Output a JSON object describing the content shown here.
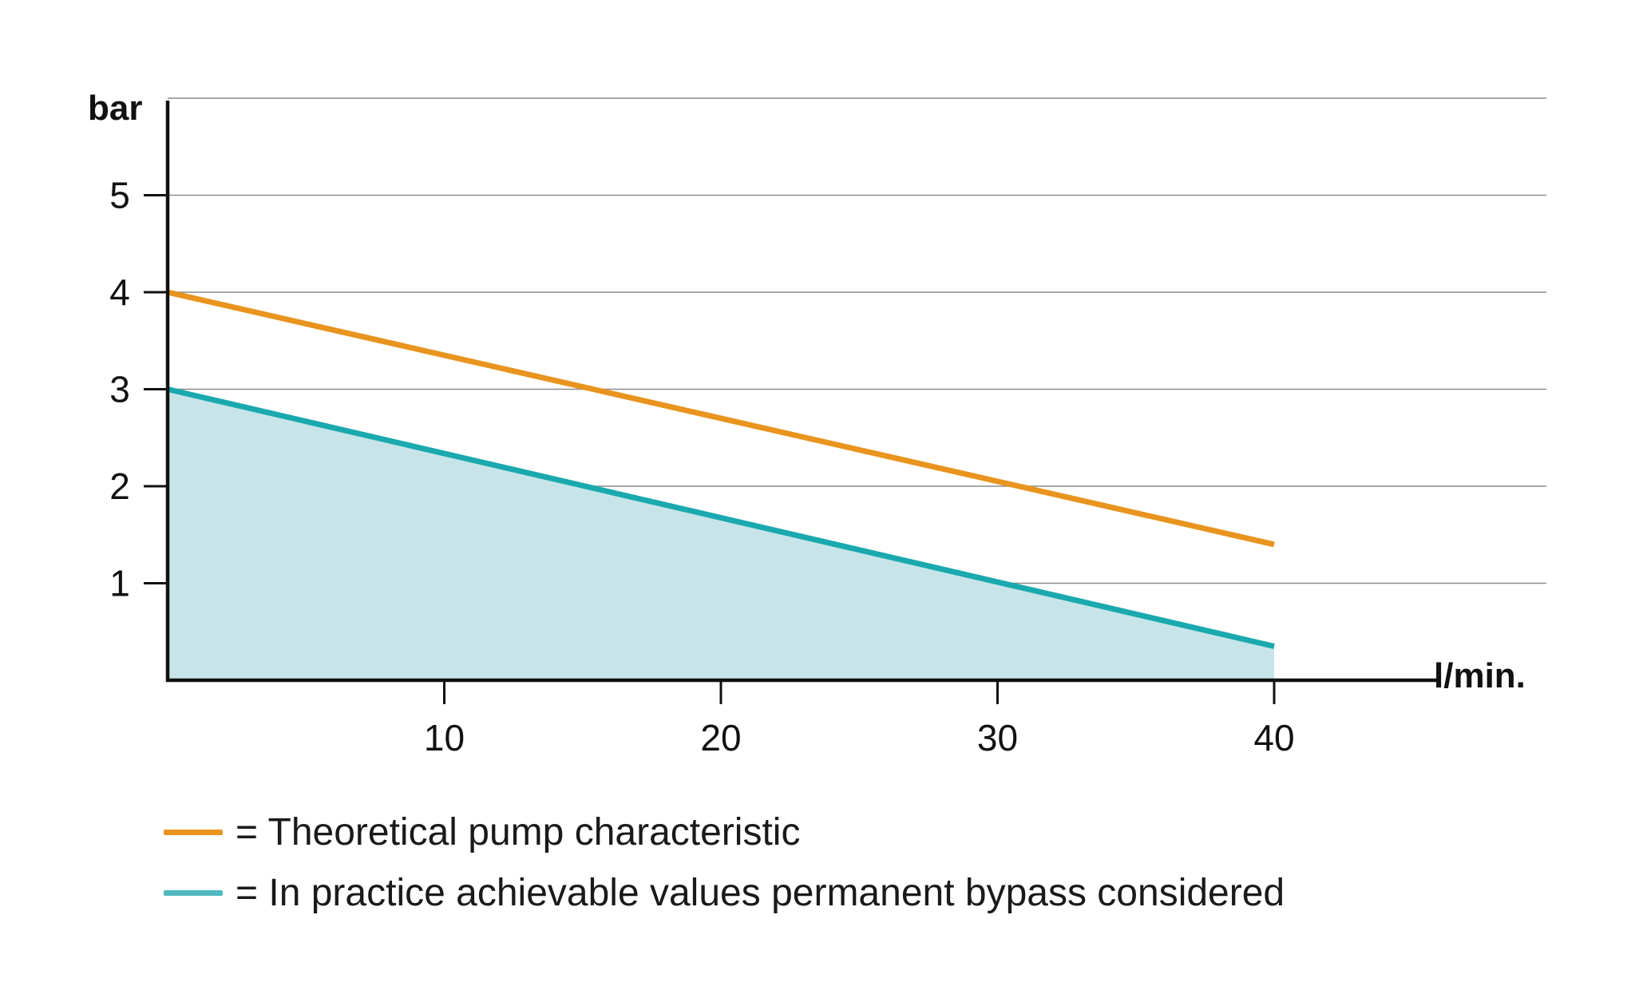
{
  "chart_data": {
    "type": "line",
    "ylabel": "bar",
    "xlabel": "l/min.",
    "x_ticks": [
      10,
      20,
      30,
      40
    ],
    "y_ticks": [
      1,
      2,
      3,
      4,
      5
    ],
    "xlim": [
      0,
      50
    ],
    "ylim": [
      0,
      6
    ],
    "grid": "horizontal",
    "series": [
      {
        "name": "Theoretical pump characteristic",
        "color": "#E8941E",
        "filled": false,
        "x": [
          0,
          40
        ],
        "y": [
          4.0,
          1.4
        ]
      },
      {
        "name": "In practice achievable values permanent bypass considered",
        "color": "#1AA9AE",
        "fill_color": "#C7E5E9",
        "filled": true,
        "x": [
          0,
          40
        ],
        "y": [
          3.0,
          0.35
        ]
      }
    ],
    "legend": {
      "placement": "bottom-left",
      "entries": [
        "= Theoretical pump characteristic",
        "= In practice achievable values permanent bypass considered"
      ]
    }
  }
}
